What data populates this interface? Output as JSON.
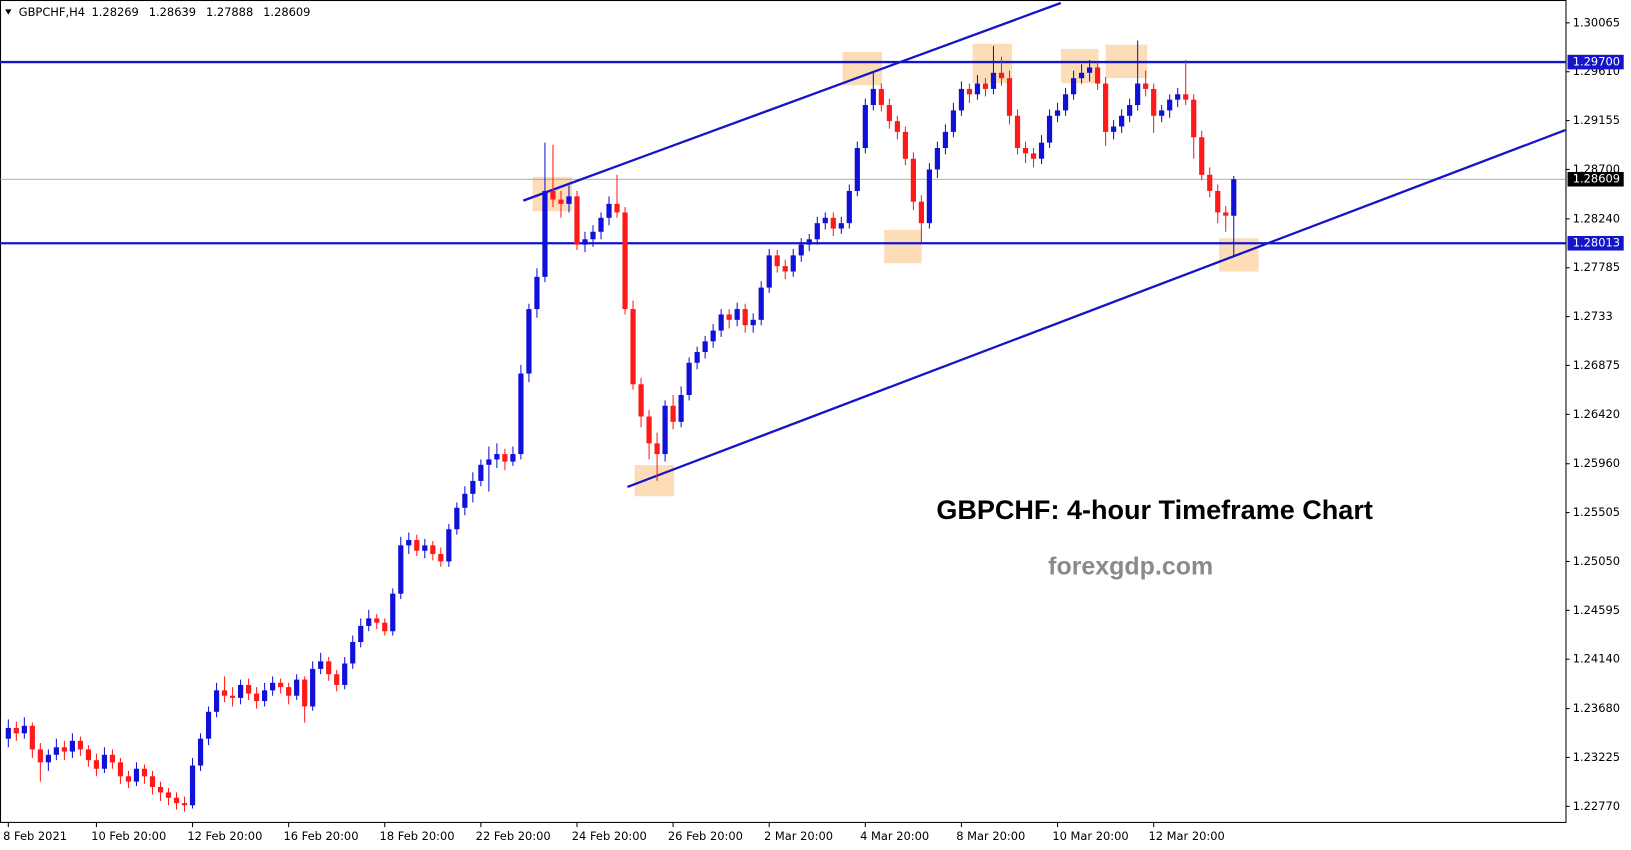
{
  "chart_data": {
    "type": "candlestick",
    "symbol": "GBPCHF,H4",
    "up_color": "#1010d8",
    "down_color": "#ff1a1a",
    "categories": [
      "8 Feb 2021",
      null,
      null,
      null,
      null,
      null,
      null,
      null,
      null,
      null,
      null,
      "10 Feb 20:00",
      null,
      null,
      null,
      null,
      null,
      null,
      null,
      null,
      null,
      null,
      null,
      "12 Feb 20:00",
      null,
      null,
      null,
      null,
      null,
      null,
      null,
      null,
      null,
      null,
      null,
      "16 Feb 20:00",
      null,
      null,
      null,
      null,
      null,
      null,
      null,
      null,
      null,
      null,
      null,
      "18 Feb 20:00",
      null,
      null,
      null,
      null,
      null,
      null,
      null,
      null,
      null,
      null,
      null,
      "22 Feb 20:00",
      null,
      null,
      null,
      null,
      null,
      null,
      null,
      null,
      null,
      null,
      null,
      "24 Feb 20:00",
      null,
      null,
      null,
      null,
      null,
      null,
      null,
      null,
      null,
      null,
      null,
      "26 Feb 20:00",
      null,
      null,
      null,
      null,
      null,
      null,
      null,
      null,
      null,
      null,
      null,
      "2 Mar 20:00",
      null,
      null,
      null,
      null,
      null,
      null,
      null,
      null,
      null,
      null,
      null,
      "4 Mar 20:00",
      null,
      null,
      null,
      null,
      null,
      null,
      null,
      null,
      null,
      null,
      null,
      "8 Mar 20:00",
      null,
      null,
      null,
      null,
      null,
      null,
      null,
      null,
      null,
      null,
      null,
      "10 Mar 20:00",
      null,
      null,
      null,
      null,
      null,
      null,
      null,
      null,
      null,
      null,
      null,
      "12 Mar 20:00",
      null,
      null,
      null,
      null,
      null,
      null,
      null,
      null,
      null,
      null
    ],
    "ohlc": [
      [
        1.234,
        1.2358,
        1.2332,
        1.235
      ],
      [
        1.235,
        1.2356,
        1.2338,
        1.2345
      ],
      [
        1.2345,
        1.236,
        1.234,
        1.2352
      ],
      [
        1.2352,
        1.2355,
        1.2322,
        1.233
      ],
      [
        1.233,
        1.2336,
        1.23,
        1.2318
      ],
      [
        1.2318,
        1.233,
        1.231,
        1.2325
      ],
      [
        1.2325,
        1.234,
        1.232,
        1.2332
      ],
      [
        1.2332,
        1.2338,
        1.232,
        1.2328
      ],
      [
        1.2328,
        1.2345,
        1.2322,
        1.2338
      ],
      [
        1.2338,
        1.2342,
        1.2324,
        1.233
      ],
      [
        1.233,
        1.2334,
        1.2314,
        1.232
      ],
      [
        1.232,
        1.2326,
        1.2305,
        1.2312
      ],
      [
        1.2312,
        1.2332,
        1.2308,
        1.2325
      ],
      [
        1.2325,
        1.233,
        1.2312,
        1.2318
      ],
      [
        1.2318,
        1.2322,
        1.2298,
        1.2305
      ],
      [
        1.2305,
        1.231,
        1.2294,
        1.23
      ],
      [
        1.23,
        1.2318,
        1.2296,
        1.2312
      ],
      [
        1.2312,
        1.2316,
        1.2298,
        1.2305
      ],
      [
        1.2305,
        1.231,
        1.2288,
        1.2295
      ],
      [
        1.2295,
        1.23,
        1.2282,
        1.229
      ],
      [
        1.229,
        1.2294,
        1.2278,
        1.2285
      ],
      [
        1.2285,
        1.229,
        1.2274,
        1.228
      ],
      [
        1.228,
        1.2286,
        1.2272,
        1.2278
      ],
      [
        1.2278,
        1.2322,
        1.2275,
        1.2315
      ],
      [
        1.2315,
        1.2345,
        1.231,
        1.234
      ],
      [
        1.234,
        1.237,
        1.2334,
        1.2365
      ],
      [
        1.2365,
        1.2392,
        1.236,
        1.2385
      ],
      [
        1.2385,
        1.2398,
        1.2374,
        1.238
      ],
      [
        1.238,
        1.2388,
        1.237,
        1.2378
      ],
      [
        1.2378,
        1.2395,
        1.2372,
        1.239
      ],
      [
        1.239,
        1.2396,
        1.2376,
        1.2382
      ],
      [
        1.2382,
        1.2388,
        1.2368,
        1.2375
      ],
      [
        1.2375,
        1.2392,
        1.237,
        1.2385
      ],
      [
        1.2385,
        1.2398,
        1.238,
        1.2392
      ],
      [
        1.2392,
        1.2396,
        1.2382,
        1.2388
      ],
      [
        1.2388,
        1.2392,
        1.2372,
        1.238
      ],
      [
        1.238,
        1.24,
        1.2376,
        1.2395
      ],
      [
        1.2395,
        1.2398,
        1.2355,
        1.237
      ],
      [
        1.237,
        1.2412,
        1.2366,
        1.2405
      ],
      [
        1.2405,
        1.242,
        1.24,
        1.2412
      ],
      [
        1.2412,
        1.2416,
        1.2394,
        1.24
      ],
      [
        1.24,
        1.2404,
        1.2384,
        1.239
      ],
      [
        1.239,
        1.2416,
        1.2386,
        1.241
      ],
      [
        1.241,
        1.2436,
        1.2405,
        1.243
      ],
      [
        1.243,
        1.2452,
        1.2425,
        1.2445
      ],
      [
        1.2445,
        1.246,
        1.244,
        1.2452
      ],
      [
        1.2452,
        1.2456,
        1.2442,
        1.2448
      ],
      [
        1.2448,
        1.2452,
        1.2436,
        1.244
      ],
      [
        1.244,
        1.248,
        1.2436,
        1.2475
      ],
      [
        1.2475,
        1.2528,
        1.247,
        1.252
      ],
      [
        1.252,
        1.2532,
        1.2512,
        1.2525
      ],
      [
        1.2525,
        1.253,
        1.251,
        1.2515
      ],
      [
        1.2515,
        1.2526,
        1.2508,
        1.252
      ],
      [
        1.252,
        1.2524,
        1.2506,
        1.2512
      ],
      [
        1.2512,
        1.2518,
        1.25,
        1.2505
      ],
      [
        1.2505,
        1.254,
        1.25,
        1.2535
      ],
      [
        1.2535,
        1.256,
        1.253,
        1.2555
      ],
      [
        1.2555,
        1.2575,
        1.2548,
        1.2568
      ],
      [
        1.2568,
        1.2588,
        1.256,
        1.258
      ],
      [
        1.258,
        1.26,
        1.2575,
        1.2595
      ],
      [
        1.2595,
        1.2612,
        1.257,
        1.26
      ],
      [
        1.26,
        1.2615,
        1.2592,
        1.2605
      ],
      [
        1.2605,
        1.261,
        1.259,
        1.2598
      ],
      [
        1.2598,
        1.2612,
        1.2594,
        1.2605
      ],
      [
        1.2605,
        1.2688,
        1.26,
        1.268
      ],
      [
        1.268,
        1.2745,
        1.2672,
        1.274
      ],
      [
        1.274,
        1.2778,
        1.2732,
        1.277
      ],
      [
        1.277,
        1.2895,
        1.2765,
        1.285
      ],
      [
        1.285,
        1.2893,
        1.2835,
        1.2842
      ],
      [
        1.2842,
        1.285,
        1.2825,
        1.2838
      ],
      [
        1.2838,
        1.2855,
        1.283,
        1.2845
      ],
      [
        1.2845,
        1.285,
        1.2795,
        1.28
      ],
      [
        1.28,
        1.2812,
        1.2793,
        1.2805
      ],
      [
        1.2805,
        1.2818,
        1.2798,
        1.2812
      ],
      [
        1.2812,
        1.283,
        1.2805,
        1.2825
      ],
      [
        1.2825,
        1.2845,
        1.2818,
        1.2838
      ],
      [
        1.2838,
        1.2865,
        1.2825,
        1.283
      ],
      [
        1.283,
        1.2835,
        1.2735,
        1.274
      ],
      [
        1.274,
        1.2748,
        1.2665,
        1.267
      ],
      [
        1.267,
        1.2676,
        1.263,
        1.264
      ],
      [
        1.264,
        1.2646,
        1.26,
        1.2615
      ],
      [
        1.2615,
        1.2625,
        1.258,
        1.2605
      ],
      [
        1.2605,
        1.2655,
        1.2598,
        1.265
      ],
      [
        1.265,
        1.266,
        1.2628,
        1.2635
      ],
      [
        1.2635,
        1.2668,
        1.263,
        1.266
      ],
      [
        1.266,
        1.2695,
        1.2655,
        1.269
      ],
      [
        1.269,
        1.2705,
        1.2684,
        1.27
      ],
      [
        1.27,
        1.2715,
        1.2694,
        1.271
      ],
      [
        1.271,
        1.2726,
        1.2704,
        1.272
      ],
      [
        1.272,
        1.274,
        1.2714,
        1.2735
      ],
      [
        1.2735,
        1.274,
        1.2722,
        1.273
      ],
      [
        1.273,
        1.2746,
        1.2724,
        1.274
      ],
      [
        1.274,
        1.2745,
        1.2718,
        1.2725
      ],
      [
        1.2725,
        1.2736,
        1.2718,
        1.273
      ],
      [
        1.273,
        1.2766,
        1.2725,
        1.276
      ],
      [
        1.276,
        1.2796,
        1.2755,
        1.279
      ],
      [
        1.279,
        1.2795,
        1.2774,
        1.278
      ],
      [
        1.278,
        1.2786,
        1.2768,
        1.2775
      ],
      [
        1.2775,
        1.2796,
        1.277,
        1.279
      ],
      [
        1.279,
        1.2806,
        1.2784,
        1.28
      ],
      [
        1.28,
        1.281,
        1.2794,
        1.2805
      ],
      [
        1.2805,
        1.2826,
        1.28,
        1.282
      ],
      [
        1.282,
        1.283,
        1.2814,
        1.2825
      ],
      [
        1.2825,
        1.283,
        1.2808,
        1.2815
      ],
      [
        1.2815,
        1.2826,
        1.281,
        1.282
      ],
      [
        1.282,
        1.2856,
        1.2815,
        1.285
      ],
      [
        1.285,
        1.2896,
        1.2845,
        1.289
      ],
      [
        1.289,
        1.2936,
        1.2885,
        1.293
      ],
      [
        1.293,
        1.296,
        1.2925,
        1.2945
      ],
      [
        1.2945,
        1.295,
        1.2924,
        1.293
      ],
      [
        1.293,
        1.2936,
        1.2908,
        1.2915
      ],
      [
        1.2915,
        1.292,
        1.2898,
        1.2905
      ],
      [
        1.2905,
        1.291,
        1.2874,
        1.288
      ],
      [
        1.288,
        1.2886,
        1.2832,
        1.284
      ],
      [
        1.284,
        1.2846,
        1.2802,
        1.282
      ],
      [
        1.282,
        1.2876,
        1.2815,
        1.287
      ],
      [
        1.287,
        1.2896,
        1.2862,
        1.289
      ],
      [
        1.289,
        1.2912,
        1.2884,
        1.2905
      ],
      [
        1.2905,
        1.2932,
        1.29,
        1.2925
      ],
      [
        1.2925,
        1.2952,
        1.292,
        1.2945
      ],
      [
        1.2945,
        1.295,
        1.2932,
        1.294
      ],
      [
        1.294,
        1.2958,
        1.2935,
        1.295
      ],
      [
        1.295,
        1.2955,
        1.2938,
        1.2945
      ],
      [
        1.2945,
        1.2985,
        1.294,
        1.296
      ],
      [
        1.296,
        1.2975,
        1.2948,
        1.2955
      ],
      [
        1.2955,
        1.2962,
        1.2912,
        1.292
      ],
      [
        1.292,
        1.2926,
        1.2884,
        1.289
      ],
      [
        1.289,
        1.2896,
        1.2876,
        1.2885
      ],
      [
        1.2885,
        1.289,
        1.2872,
        1.288
      ],
      [
        1.288,
        1.2902,
        1.2875,
        1.2895
      ],
      [
        1.2895,
        1.2926,
        1.289,
        1.292
      ],
      [
        1.292,
        1.2932,
        1.2914,
        1.2925
      ],
      [
        1.2925,
        1.2946,
        1.292,
        1.294
      ],
      [
        1.294,
        1.2962,
        1.2935,
        1.2955
      ],
      [
        1.2955,
        1.2968,
        1.295,
        1.296
      ],
      [
        1.296,
        1.2972,
        1.2952,
        1.2965
      ],
      [
        1.2965,
        1.297,
        1.2944,
        1.295
      ],
      [
        1.295,
        1.2956,
        1.2892,
        1.2905
      ],
      [
        1.2905,
        1.2916,
        1.2898,
        1.291
      ],
      [
        1.291,
        1.2926,
        1.2904,
        1.292
      ],
      [
        1.292,
        1.2936,
        1.2914,
        1.293
      ],
      [
        1.293,
        1.299,
        1.2925,
        1.295
      ],
      [
        1.295,
        1.2962,
        1.2938,
        1.2945
      ],
      [
        1.2945,
        1.295,
        1.2904,
        1.292
      ],
      [
        1.292,
        1.293,
        1.2914,
        1.2925
      ],
      [
        1.2925,
        1.294,
        1.2918,
        1.2935
      ],
      [
        1.2935,
        1.2946,
        1.2928,
        1.294
      ],
      [
        1.294,
        1.2972,
        1.293,
        1.2935
      ],
      [
        1.2935,
        1.294,
        1.288,
        1.29
      ],
      [
        1.29,
        1.2906,
        1.286,
        1.2865
      ],
      [
        1.2865,
        1.2872,
        1.2844,
        1.285
      ],
      [
        1.285,
        1.2856,
        1.282,
        1.283
      ],
      [
        1.283,
        1.2836,
        1.2812,
        1.2827
      ],
      [
        1.28269,
        1.28639,
        1.27888,
        1.28609
      ]
    ],
    "ylim": [
      1.22625,
      1.30278
    ],
    "yticks": [
      1.30065,
      {
        "value": 1.2961,
        "label": "1.29610"
      },
      1.29155,
      {
        "value": 1.287,
        "label": "1.28700"
      },
      {
        "value": 1.2824,
        "label": "1.28240"
      },
      1.27785,
      1.2733,
      1.26875,
      {
        "value": 1.2642,
        "label": "1.26420"
      },
      {
        "value": 1.2596,
        "label": "1.25960"
      },
      1.25505,
      {
        "value": 1.2505,
        "label": "1.25050"
      },
      1.24595,
      {
        "value": 1.2414,
        "label": "1.24140"
      },
      {
        "value": 1.2368,
        "label": "1.23680"
      },
      1.23225,
      {
        "value": 1.2277,
        "label": "1.22770"
      }
    ],
    "levels": [
      {
        "value": 1.297,
        "label": "1.29700"
      },
      1.28013
    ],
    "level_color": "#1414c8",
    "trendlines": [
      {
        "x": [
          64.3,
          131.4
        ],
        "y": [
          1.2841,
          1.3025
        ]
      },
      {
        "x": [
          77.3,
          194.4
        ],
        "y": [
          1.25744,
          1.29067
        ]
      }
    ],
    "annotations": [
      "GBPCHF: 4-hour Timeframe Chart",
      "forexgdp.com"
    ],
    "grid": false
  }
}
